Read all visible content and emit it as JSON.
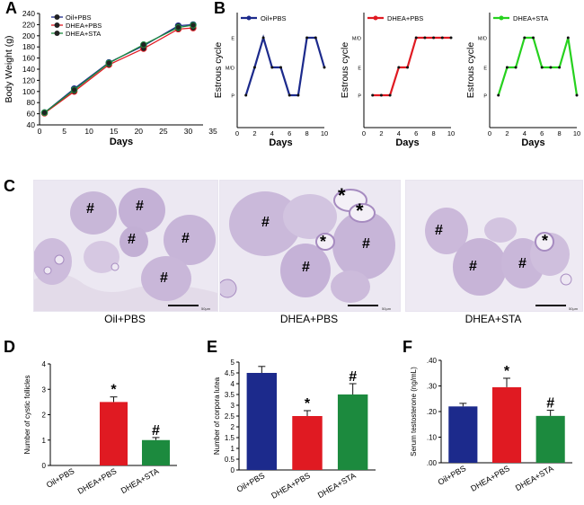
{
  "panel_labels": [
    "A",
    "B",
    "C",
    "D",
    "E",
    "F"
  ],
  "images": {
    "captions": [
      "Oil+PBS",
      "DHEA+PBS",
      "DHEA+STA"
    ],
    "scale_text": "50μm",
    "markers": {
      "hash": "#",
      "star": "*"
    }
  },
  "colors": {
    "oil": "#1c2a8c",
    "dhea": "#e01a22",
    "sta": "#1c8a3e",
    "sta_light": "#26d11e"
  },
  "chart_data": [
    {
      "panel": "A",
      "type": "line",
      "xlabel": "Days",
      "ylabel": "Body Weight (g)",
      "xlim": [
        0,
        33
      ],
      "ylim": [
        40,
        240
      ],
      "xticks": [
        0,
        5,
        10,
        15,
        20,
        25,
        30,
        35
      ],
      "yticks": [
        40,
        60,
        80,
        100,
        120,
        140,
        160,
        180,
        200,
        220,
        240
      ],
      "x": [
        1,
        7,
        14,
        21,
        28,
        31
      ],
      "series": [
        {
          "name": "Oil+PBS",
          "values": [
            62,
            105,
            152,
            182,
            218,
            220
          ]
        },
        {
          "name": "DHEA+PBS",
          "values": [
            61,
            100,
            148,
            177,
            212,
            214
          ]
        },
        {
          "name": "DHEA+STA",
          "values": [
            62,
            103,
            151,
            184,
            215,
            219
          ]
        }
      ],
      "legend": "top-left"
    },
    {
      "panel": "B1",
      "type": "line",
      "xlabel": "Days",
      "ylabel": "Estrous cycle",
      "xticks": [
        0,
        2,
        4,
        6,
        8,
        10
      ],
      "ylevels": [
        "P",
        "M/D",
        "E"
      ],
      "x": [
        1,
        2,
        3,
        4,
        5,
        6,
        7,
        8,
        9,
        10
      ],
      "values": [
        0,
        1,
        2,
        1,
        1,
        0,
        0,
        2,
        2,
        1
      ],
      "series_name": "Oil+PBS"
    },
    {
      "panel": "B2",
      "type": "line",
      "xlabel": "Days",
      "ylabel": "Estrous cycle",
      "xticks": [
        0,
        2,
        4,
        6,
        8,
        10
      ],
      "ylevels": [
        "P",
        "E",
        "M/D"
      ],
      "x": [
        1,
        2,
        3,
        4,
        5,
        6,
        7,
        8,
        9,
        10
      ],
      "values": [
        0,
        0,
        0,
        1,
        1,
        2,
        2,
        2,
        2,
        2
      ],
      "series_name": "DHEA+PBS"
    },
    {
      "panel": "B3",
      "type": "line",
      "xlabel": "Days",
      "ylabel": "Estrous cycle",
      "xticks": [
        0,
        2,
        4,
        6,
        8,
        10
      ],
      "ylevels": [
        "P",
        "E",
        "M/D"
      ],
      "x": [
        1,
        2,
        3,
        4,
        5,
        6,
        7,
        8,
        9,
        10
      ],
      "values": [
        0,
        1,
        1,
        2,
        2,
        1,
        1,
        1,
        2,
        0
      ],
      "series_name": "DHEA+STA"
    },
    {
      "panel": "D",
      "type": "bar",
      "categories": [
        "Oil+PBS",
        "DHEA+PBS",
        "DHEA+STA"
      ],
      "values": [
        0,
        2.5,
        1.0
      ],
      "errors": [
        0,
        0.2,
        0.1
      ],
      "marks": [
        "",
        "*",
        "#"
      ],
      "ylabel": "Number of cystic follicles",
      "ylim": [
        0,
        4
      ],
      "yticks": [
        0,
        1,
        2,
        3,
        4
      ]
    },
    {
      "panel": "E",
      "type": "bar",
      "categories": [
        "Oil+PBS",
        "DHEA+PBS",
        "DHEA+STA"
      ],
      "values": [
        4.5,
        2.5,
        3.5
      ],
      "errors": [
        0.3,
        0.25,
        0.5
      ],
      "marks": [
        "",
        "*",
        "#"
      ],
      "ylabel": "Number of corpora lutea",
      "ylim": [
        0,
        5
      ],
      "yticks": [
        0,
        0.5,
        1,
        1.5,
        2,
        2.5,
        3,
        3.5,
        4,
        4.5,
        5
      ]
    },
    {
      "panel": "F",
      "type": "bar",
      "categories": [
        "Oil+PBS",
        "DHEA+PBS",
        "DHEA+STA"
      ],
      "values": [
        0.22,
        0.295,
        0.183
      ],
      "errors": [
        0.012,
        0.035,
        0.022
      ],
      "marks": [
        "",
        "*",
        "#"
      ],
      "ylabel": "Serum testosterone (ng/mL)",
      "ylim": [
        0,
        0.4
      ],
      "yticks": [
        ".00",
        ".10",
        ".20",
        ".30",
        ".40"
      ]
    }
  ]
}
